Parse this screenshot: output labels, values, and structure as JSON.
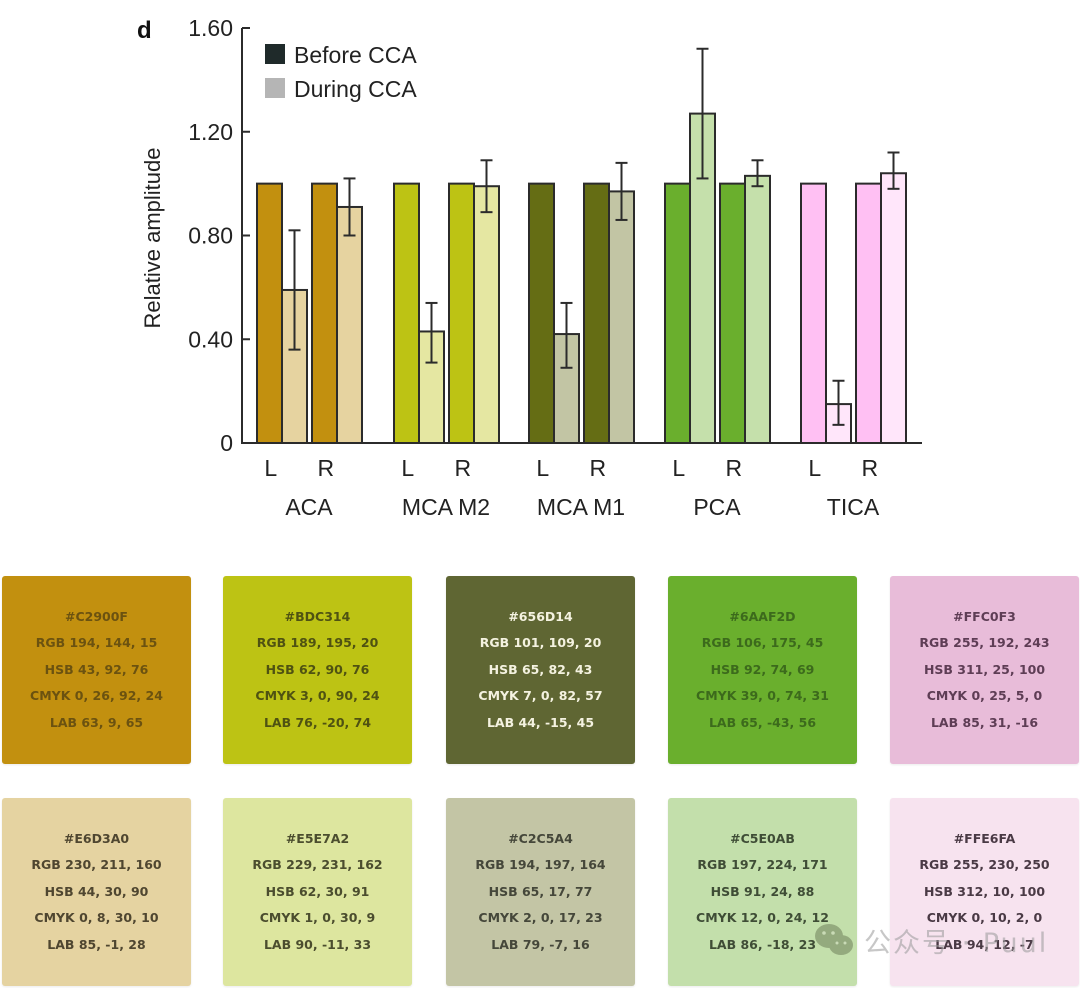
{
  "panel_letter": "d",
  "chart_data": {
    "type": "bar",
    "title": "",
    "xlabel": "",
    "ylabel": "Relative amplitude",
    "ylim": [
      0,
      1.6
    ],
    "yticks": [
      0,
      0.4,
      0.8,
      1.2,
      1.6
    ],
    "ytick_labels": [
      "0",
      "0.40",
      "0.80",
      "1.20",
      "1.60"
    ],
    "grid": false,
    "legend": {
      "placement": "top-left",
      "entries": [
        {
          "label": "Before CCA",
          "color": "#1f2a2a"
        },
        {
          "label": "During CCA",
          "color": "#b5b5b5"
        }
      ]
    },
    "categories": [
      "ACA",
      "MCA M2",
      "MCA M1",
      "PCA",
      "TICA"
    ],
    "sides": [
      "L",
      "R"
    ],
    "groups": [
      {
        "name": "ACA",
        "before_color": "#C2900F",
        "during_color": "#E6D3A0",
        "bars": [
          {
            "side": "L",
            "before": 1.0,
            "during": 0.59,
            "err_low": 0.36,
            "err_high": 0.82
          },
          {
            "side": "R",
            "before": 1.0,
            "during": 0.91,
            "err_low": 0.8,
            "err_high": 1.02
          }
        ]
      },
      {
        "name": "MCA M2",
        "before_color": "#BDC314",
        "during_color": "#E5E7A2",
        "bars": [
          {
            "side": "L",
            "before": 1.0,
            "during": 0.43,
            "err_low": 0.31,
            "err_high": 0.54
          },
          {
            "side": "R",
            "before": 1.0,
            "during": 0.99,
            "err_low": 0.89,
            "err_high": 1.09
          }
        ]
      },
      {
        "name": "MCA M1",
        "before_color": "#656D14",
        "during_color": "#C2C5A4",
        "bars": [
          {
            "side": "L",
            "before": 1.0,
            "during": 0.42,
            "err_low": 0.29,
            "err_high": 0.54
          },
          {
            "side": "R",
            "before": 1.0,
            "during": 0.97,
            "err_low": 0.86,
            "err_high": 1.08
          }
        ]
      },
      {
        "name": "PCA",
        "before_color": "#6AAF2D",
        "during_color": "#C5E0AB",
        "bars": [
          {
            "side": "L",
            "before": 1.0,
            "during": 1.27,
            "err_low": 1.02,
            "err_high": 1.52
          },
          {
            "side": "R",
            "before": 1.0,
            "during": 1.03,
            "err_low": 0.99,
            "err_high": 1.09
          }
        ]
      },
      {
        "name": "TICA",
        "before_color": "#FFC0F3",
        "during_color": "#FFE6FA",
        "bars": [
          {
            "side": "L",
            "before": 1.0,
            "during": 0.15,
            "err_low": 0.07,
            "err_high": 0.24
          },
          {
            "side": "R",
            "before": 1.0,
            "during": 1.04,
            "err_low": 0.98,
            "err_high": 1.12
          }
        ]
      }
    ]
  },
  "swatches": [
    {
      "hex": "#C2900F",
      "rgb": "RGB 194, 144, 15",
      "hsb": "HSB 43, 92, 76",
      "cmyk": "CMYK 0, 26, 92, 24",
      "lab": "LAB 63, 9, 65",
      "bg": "#C2900F",
      "fg": "#6b5210"
    },
    {
      "hex": "#BDC314",
      "rgb": "RGB 189, 195, 20",
      "hsb": "HSB 62, 90, 76",
      "cmyk": "CMYK 3, 0, 90, 24",
      "lab": "LAB 76, -20, 74",
      "bg": "#BDC314",
      "fg": "#4f5212"
    },
    {
      "hex": "#656D14",
      "rgb": "RGB 101, 109, 20",
      "hsb": "HSB 65, 82, 43",
      "cmyk": "CMYK 7, 0, 82, 57",
      "lab": "LAB 44, -15, 45",
      "bg": "#5f6633",
      "fg": "#f4f2e0"
    },
    {
      "hex": "#6AAF2D",
      "rgb": "RGB 106, 175, 45",
      "hsb": "HSB 92, 74, 69",
      "cmyk": "CMYK 39, 0, 74, 31",
      "lab": "LAB 65, -43, 56",
      "bg": "#6AAF2D",
      "fg": "#3c6a1c"
    },
    {
      "hex": "#FFC0F3",
      "rgb": "RGB 255, 192, 243",
      "hsb": "HSB 311, 25, 100",
      "cmyk": "CMYK 0, 25, 5, 0",
      "lab": "LAB 85, 31, -16",
      "bg": "#e8bcd9",
      "fg": "#5e3d55"
    },
    {
      "hex": "#E6D3A0",
      "rgb": "RGB 230, 211, 160",
      "hsb": "HSB 44, 30, 90",
      "cmyk": "CMYK 0, 8, 30, 10",
      "lab": "LAB 85, -1, 28",
      "bg": "#e5d3a1",
      "fg": "#4f4630"
    },
    {
      "hex": "#E5E7A2",
      "rgb": "RGB 229, 231, 162",
      "hsb": "HSB 62, 30, 91",
      "cmyk": "CMYK 1, 0, 30, 9",
      "lab": "LAB 90, -11, 33",
      "bg": "#dde69f",
      "fg": "#4b4d2e"
    },
    {
      "hex": "#C2C5A4",
      "rgb": "RGB 194, 197, 164",
      "hsb": "HSB 65, 17, 77",
      "cmyk": "CMYK 2, 0, 17, 23",
      "lab": "LAB 79, -7, 16",
      "bg": "#c3c5a5",
      "fg": "#45473a"
    },
    {
      "hex": "#C5E0AB",
      "rgb": "RGB 197, 224, 171",
      "hsb": "HSB 91, 24, 88",
      "cmyk": "CMYK 12, 0, 24, 12",
      "lab": "LAB 86, -18, 23",
      "bg": "#c3dfab",
      "fg": "#3f4d36"
    },
    {
      "hex": "#FFE6FA",
      "rgb": "RGB 255, 230, 250",
      "hsb": "HSB 312, 10, 100",
      "cmyk": "CMYK 0, 10, 2, 0",
      "lab": "LAB 94, 12, -7",
      "bg": "#f7e3ef",
      "fg": "#4a3a45"
    }
  ],
  "watermark": {
    "text": "公众号 · Puul",
    "icon": "wechat-icon"
  }
}
